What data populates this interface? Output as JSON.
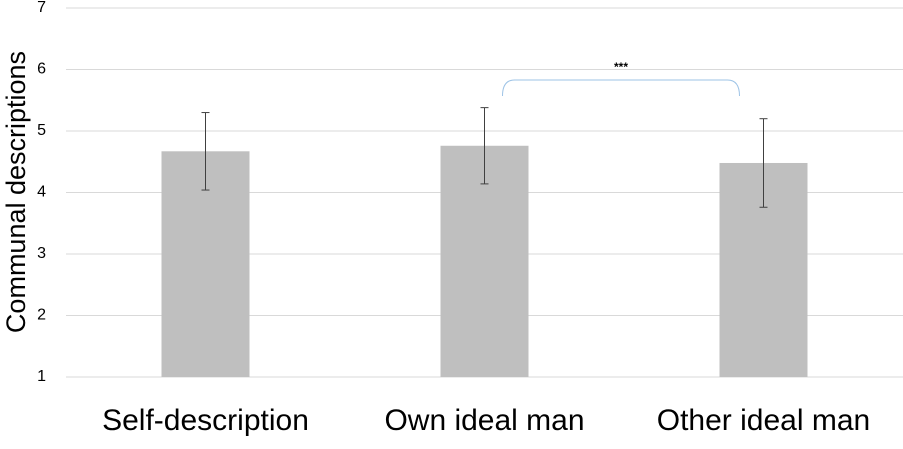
{
  "chart_data": {
    "type": "bar",
    "y_label": "Communal descriptions",
    "categories": [
      "Self-description",
      "Own ideal man",
      "Other ideal man"
    ],
    "values": [
      4.67,
      4.76,
      4.48
    ],
    "errors": [
      0.63,
      0.62,
      0.72
    ],
    "color": "#bfbfbf",
    "ylim": [
      1,
      7
    ],
    "yticks": [
      1,
      2,
      3,
      4,
      5,
      6,
      7
    ],
    "grid": true,
    "annotation": "***"
  }
}
